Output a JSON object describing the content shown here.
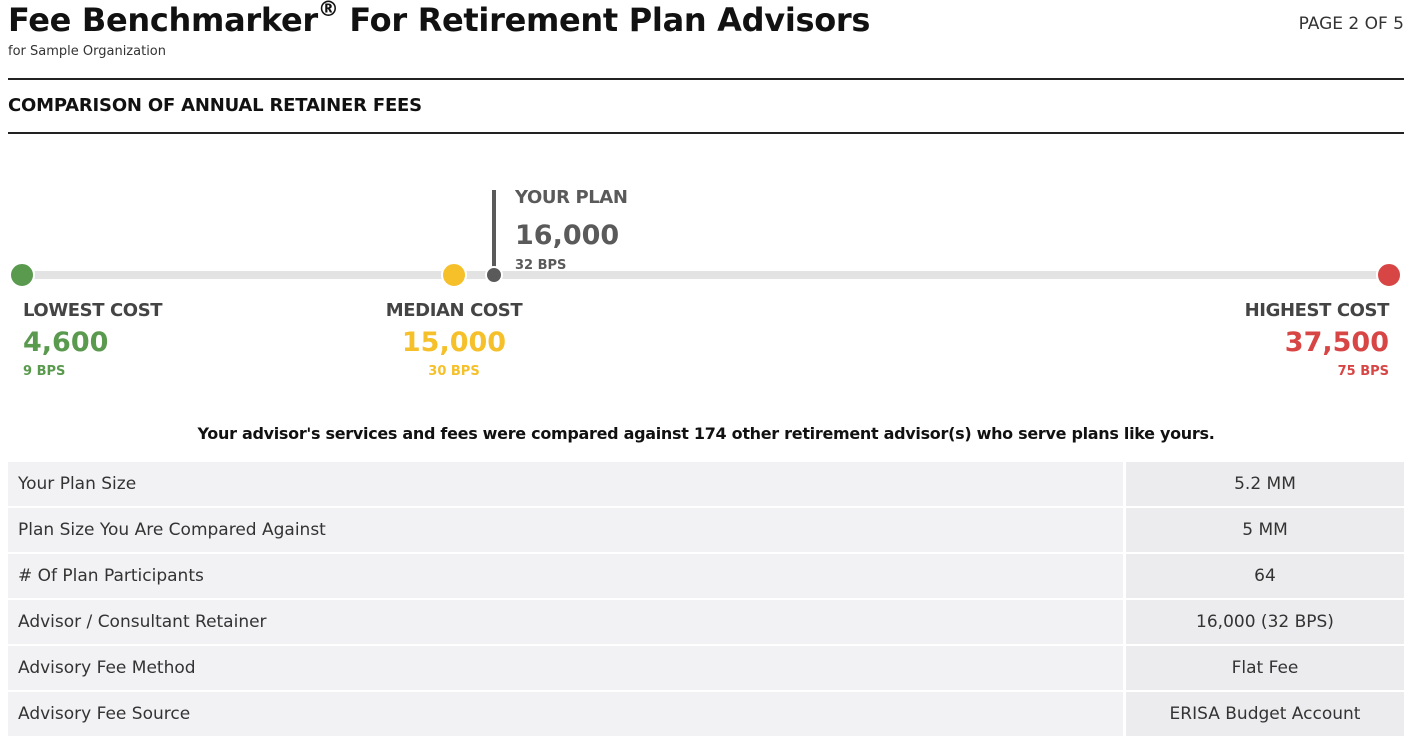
{
  "header": {
    "title": "Fee Benchmarker",
    "title_mark": "®",
    "title_suffix": " For Retirement Plan Advisors",
    "subtitle": "for Sample Organization",
    "page_indicator": "PAGE 2 OF 5"
  },
  "section": {
    "title": "COMPARISON OF ANNUAL RETAINER FEES"
  },
  "range": {
    "your_plan": {
      "label": "YOUR PLAN",
      "value": "16,000",
      "bps": "32 BPS",
      "amount": 16000
    },
    "lowest": {
      "label": "LOWEST COST",
      "value": "4,600",
      "bps": "9 BPS",
      "amount": 4600,
      "color": "#5a9a4e"
    },
    "median": {
      "label": "MEDIAN COST",
      "value": "15,000",
      "bps": "30 BPS",
      "amount": 15000,
      "color": "#f5c02a"
    },
    "highest": {
      "label": "HIGHEST COST",
      "value": "37,500",
      "bps": "75 BPS",
      "amount": 37500,
      "color": "#d84545"
    }
  },
  "compare_note": "Your advisor's services and fees were compared against 174 other retirement advisor(s) who serve plans like yours.",
  "details": [
    {
      "label": "Your Plan Size",
      "value": "5.2 MM"
    },
    {
      "label": "Plan Size You Are Compared Against",
      "value": "5 MM"
    },
    {
      "label": "# Of Plan Participants",
      "value": "64"
    },
    {
      "label": "Advisor / Consultant Retainer",
      "value": "16,000 (32 BPS)"
    },
    {
      "label": "Advisory Fee Method",
      "value": "Flat Fee"
    },
    {
      "label": "Advisory Fee Source",
      "value": "ERISA Budget Account"
    }
  ]
}
